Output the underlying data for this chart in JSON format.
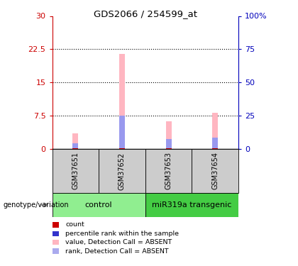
{
  "title": "GDS2066 / 254599_at",
  "samples": [
    "GSM37651",
    "GSM37652",
    "GSM37653",
    "GSM37654"
  ],
  "ylim_left": [
    0,
    30
  ],
  "ylim_right": [
    0,
    100
  ],
  "yticks_left": [
    0,
    7.5,
    15,
    22.5,
    30
  ],
  "ytick_labels_left": [
    "0",
    "7.5",
    "15",
    "22.5",
    "30"
  ],
  "yticks_right": [
    0,
    25,
    50,
    75,
    100
  ],
  "ytick_labels_right": [
    "0",
    "25",
    "50",
    "75",
    "100%"
  ],
  "bar_width": 0.12,
  "pink_bar_values": [
    3.5,
    21.5,
    6.2,
    8.2
  ],
  "blue_bar_values": [
    1.3,
    7.5,
    2.2,
    2.5
  ],
  "red_bar_values": [
    0.18,
    0.18,
    0.18,
    0.18
  ],
  "pink_color": "#FFB6C1",
  "blue_color": "#9999EE",
  "red_color": "#CC0000",
  "left_axis_color": "#CC0000",
  "right_axis_color": "#0000BB",
  "sample_box_color": "#CCCCCC",
  "control_group_color": "#90EE90",
  "transgenic_group_color": "#44CC44",
  "legend_items": [
    {
      "label": "count",
      "color": "#CC0000"
    },
    {
      "label": "percentile rank within the sample",
      "color": "#3333CC"
    },
    {
      "label": "value, Detection Call = ABSENT",
      "color": "#FFB6C1"
    },
    {
      "label": "rank, Detection Call = ABSENT",
      "color": "#AAAAEE"
    }
  ]
}
